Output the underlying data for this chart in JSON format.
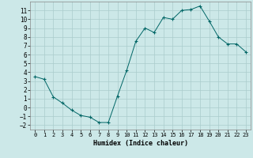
{
  "x": [
    0,
    1,
    2,
    3,
    4,
    5,
    6,
    7,
    8,
    9,
    10,
    11,
    12,
    13,
    14,
    15,
    16,
    17,
    18,
    19,
    20,
    21,
    22,
    23
  ],
  "y": [
    3.5,
    3.2,
    1.2,
    0.5,
    -0.3,
    -0.9,
    -1.1,
    -1.7,
    -1.7,
    1.3,
    4.2,
    7.5,
    9.0,
    8.5,
    10.2,
    10.0,
    11.0,
    11.1,
    11.5,
    9.8,
    8.0,
    7.2,
    7.2,
    6.3
  ],
  "xlabel": "Humidex (Indice chaleur)",
  "xlim": [
    -0.5,
    23.5
  ],
  "ylim": [
    -2.5,
    12.0
  ],
  "bg_color": "#cce8e8",
  "grid_color": "#aacccc",
  "line_color": "#006666",
  "yticks": [
    -2,
    -1,
    0,
    1,
    2,
    3,
    4,
    5,
    6,
    7,
    8,
    9,
    10,
    11
  ],
  "xticks": [
    0,
    1,
    2,
    3,
    4,
    5,
    6,
    7,
    8,
    9,
    10,
    11,
    12,
    13,
    14,
    15,
    16,
    17,
    18,
    19,
    20,
    21,
    22,
    23
  ]
}
